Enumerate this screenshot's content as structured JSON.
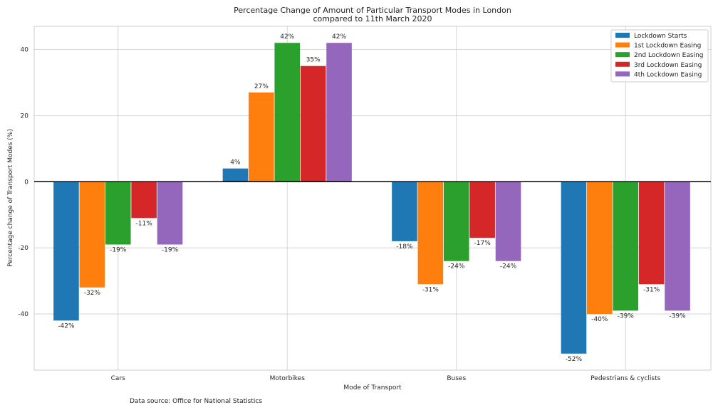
{
  "chart_data": {
    "type": "bar",
    "title": "Percentage Change of Amount of Particular Transport Modes in London",
    "subtitle": "compared to 11th March 2020",
    "xlabel": "Mode of Transport",
    "ylabel": "Percentage change of Transport Modes (%)",
    "categories": [
      "Cars",
      "Motorbikes",
      "Buses",
      "Pedestrians & cyclists"
    ],
    "series": [
      {
        "name": "Lockdown Starts",
        "color": "#1f77b4",
        "values": [
          -42,
          4,
          -18,
          -52
        ]
      },
      {
        "name": "1st Lockdown Easing",
        "color": "#ff7f0e",
        "values": [
          -32,
          27,
          -31,
          -40
        ]
      },
      {
        "name": "2nd Lockdown Easing",
        "color": "#2ca02c",
        "values": [
          -19,
          42,
          -24,
          -39
        ]
      },
      {
        "name": "3rd Lockdown Easing",
        "color": "#d62728",
        "values": [
          -11,
          35,
          -17,
          -31
        ]
      },
      {
        "name": "4th Lockdown Easing",
        "color": "#9467bd",
        "values": [
          -19,
          42,
          -24,
          -39
        ]
      }
    ],
    "value_label_suffix": "%",
    "yticks": [
      -40,
      -20,
      0,
      20,
      40
    ],
    "ylim": [
      -57,
      47
    ],
    "grid": true,
    "legend_position": "top-right"
  },
  "source_note": "Data source: Office for National Statistics"
}
